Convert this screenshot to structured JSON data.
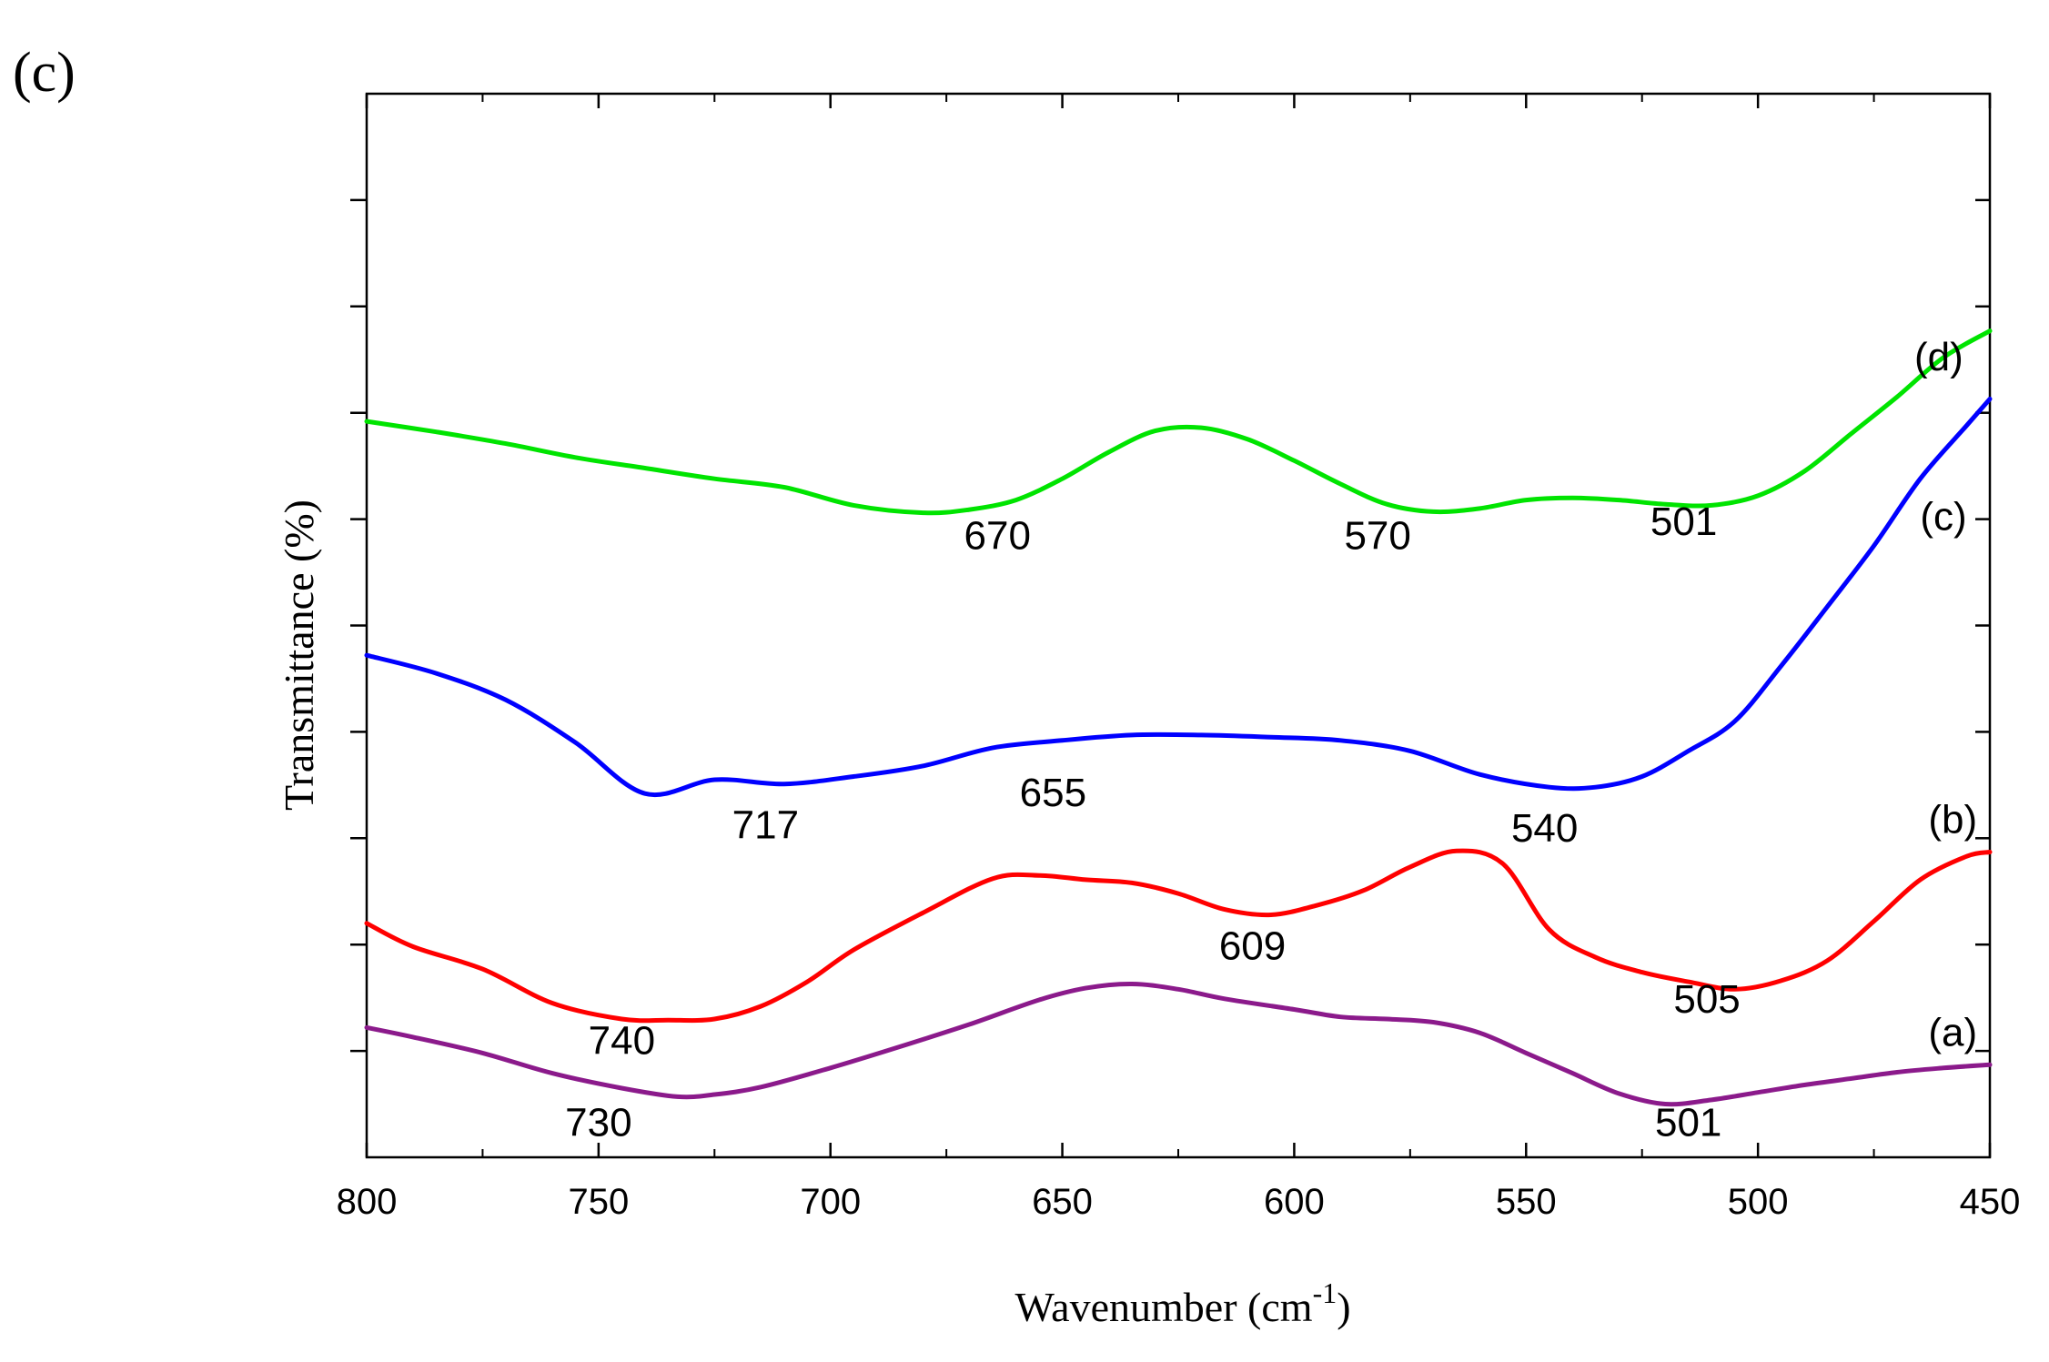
{
  "panel_label": "(c)",
  "chart_data": {
    "type": "line",
    "xlabel": "Wavenumber (cm",
    "xlabel_sup": "-1",
    "xlabel_close": ")",
    "ylabel": "Transmittance (%)",
    "xlim": [
      800,
      450
    ],
    "ylim": [
      0,
      10
    ],
    "x_ticks": [
      800,
      750,
      700,
      650,
      600,
      550,
      500,
      450
    ],
    "x_tick_labels": [
      "800",
      "750",
      "700",
      "650",
      "600",
      "550",
      "500",
      "450"
    ],
    "y_minor_ticks": [
      1,
      2,
      3,
      4,
      5,
      6,
      7,
      8,
      9
    ],
    "y_tick_labels_shown": false,
    "series": [
      {
        "name": "(a)",
        "color": "#8b1a8b",
        "x": [
          800,
          790,
          775,
          760,
          745,
          733,
          725,
          715,
          700,
          685,
          670,
          655,
          645,
          635,
          625,
          615,
          600,
          590,
          580,
          570,
          560,
          550,
          540,
          530,
          520,
          510,
          500,
          490,
          480,
          470,
          460,
          450
        ],
        "y": [
          1.22,
          1.13,
          0.98,
          0.79,
          0.65,
          0.57,
          0.59,
          0.66,
          0.84,
          1.04,
          1.25,
          1.48,
          1.59,
          1.63,
          1.58,
          1.49,
          1.39,
          1.32,
          1.3,
          1.27,
          1.17,
          0.98,
          0.79,
          0.6,
          0.5,
          0.54,
          0.61,
          0.68,
          0.74,
          0.8,
          0.84,
          0.87
        ]
      },
      {
        "name": "(b)",
        "color": "#ff0000",
        "x": [
          800,
          790,
          775,
          760,
          745,
          735,
          725,
          715,
          705,
          695,
          680,
          665,
          655,
          645,
          635,
          625,
          615,
          605,
          595,
          585,
          575,
          565,
          555,
          545,
          535,
          525,
          515,
          505,
          495,
          485,
          475,
          465,
          455,
          450
        ],
        "y": [
          2.2,
          1.98,
          1.77,
          1.45,
          1.3,
          1.29,
          1.3,
          1.42,
          1.65,
          1.95,
          2.3,
          2.62,
          2.65,
          2.61,
          2.58,
          2.48,
          2.33,
          2.28,
          2.37,
          2.51,
          2.73,
          2.88,
          2.76,
          2.14,
          1.88,
          1.74,
          1.65,
          1.58,
          1.66,
          1.85,
          2.22,
          2.61,
          2.83,
          2.87
        ]
      },
      {
        "name": "(c)",
        "color": "#0000ff",
        "x": [
          800,
          785,
          770,
          755,
          740,
          725,
          710,
          695,
          680,
          665,
          650,
          635,
          620,
          605,
          590,
          575,
          560,
          545,
          535,
          525,
          515,
          505,
          495,
          485,
          475,
          465,
          455,
          450
        ],
        "y": [
          4.72,
          4.55,
          4.3,
          3.9,
          3.42,
          3.55,
          3.51,
          3.58,
          3.68,
          3.85,
          3.92,
          3.97,
          3.97,
          3.95,
          3.92,
          3.82,
          3.6,
          3.48,
          3.48,
          3.58,
          3.82,
          4.1,
          4.62,
          5.18,
          5.75,
          6.38,
          6.88,
          7.13
        ]
      },
      {
        "name": "(d)",
        "color": "#00e400",
        "x": [
          800,
          785,
          770,
          755,
          740,
          725,
          710,
          695,
          680,
          670,
          660,
          650,
          640,
          630,
          620,
          610,
          600,
          590,
          580,
          570,
          560,
          550,
          540,
          530,
          520,
          510,
          500,
          490,
          480,
          470,
          460,
          450
        ],
        "y": [
          6.92,
          6.82,
          6.71,
          6.58,
          6.48,
          6.38,
          6.3,
          6.13,
          6.06,
          6.09,
          6.18,
          6.38,
          6.63,
          6.83,
          6.86,
          6.75,
          6.55,
          6.33,
          6.14,
          6.07,
          6.1,
          6.18,
          6.2,
          6.18,
          6.14,
          6.13,
          6.22,
          6.45,
          6.8,
          7.15,
          7.52,
          7.77
        ]
      }
    ],
    "series_labels": [
      {
        "text": "(a)",
        "x": 458,
        "y": 1.05
      },
      {
        "text": "(b)",
        "x": 458,
        "y": 3.05
      },
      {
        "text": "(c)",
        "x": 460,
        "y": 5.9
      },
      {
        "text": "(d)",
        "x": 461,
        "y": 7.4
      }
    ],
    "annotations": [
      {
        "text": "730",
        "x": 750,
        "y": 0.2
      },
      {
        "text": "501",
        "x": 515,
        "y": 0.2
      },
      {
        "text": "740",
        "x": 745,
        "y": 0.97
      },
      {
        "text": "609",
        "x": 609,
        "y": 1.86
      },
      {
        "text": "505",
        "x": 511,
        "y": 1.36
      },
      {
        "text": "717",
        "x": 714,
        "y": 3.0
      },
      {
        "text": "655",
        "x": 652,
        "y": 3.3
      },
      {
        "text": "540",
        "x": 546,
        "y": 2.97
      },
      {
        "text": "670",
        "x": 664,
        "y": 5.72
      },
      {
        "text": "570",
        "x": 582,
        "y": 5.72
      },
      {
        "text": "501",
        "x": 516,
        "y": 5.85
      }
    ]
  }
}
